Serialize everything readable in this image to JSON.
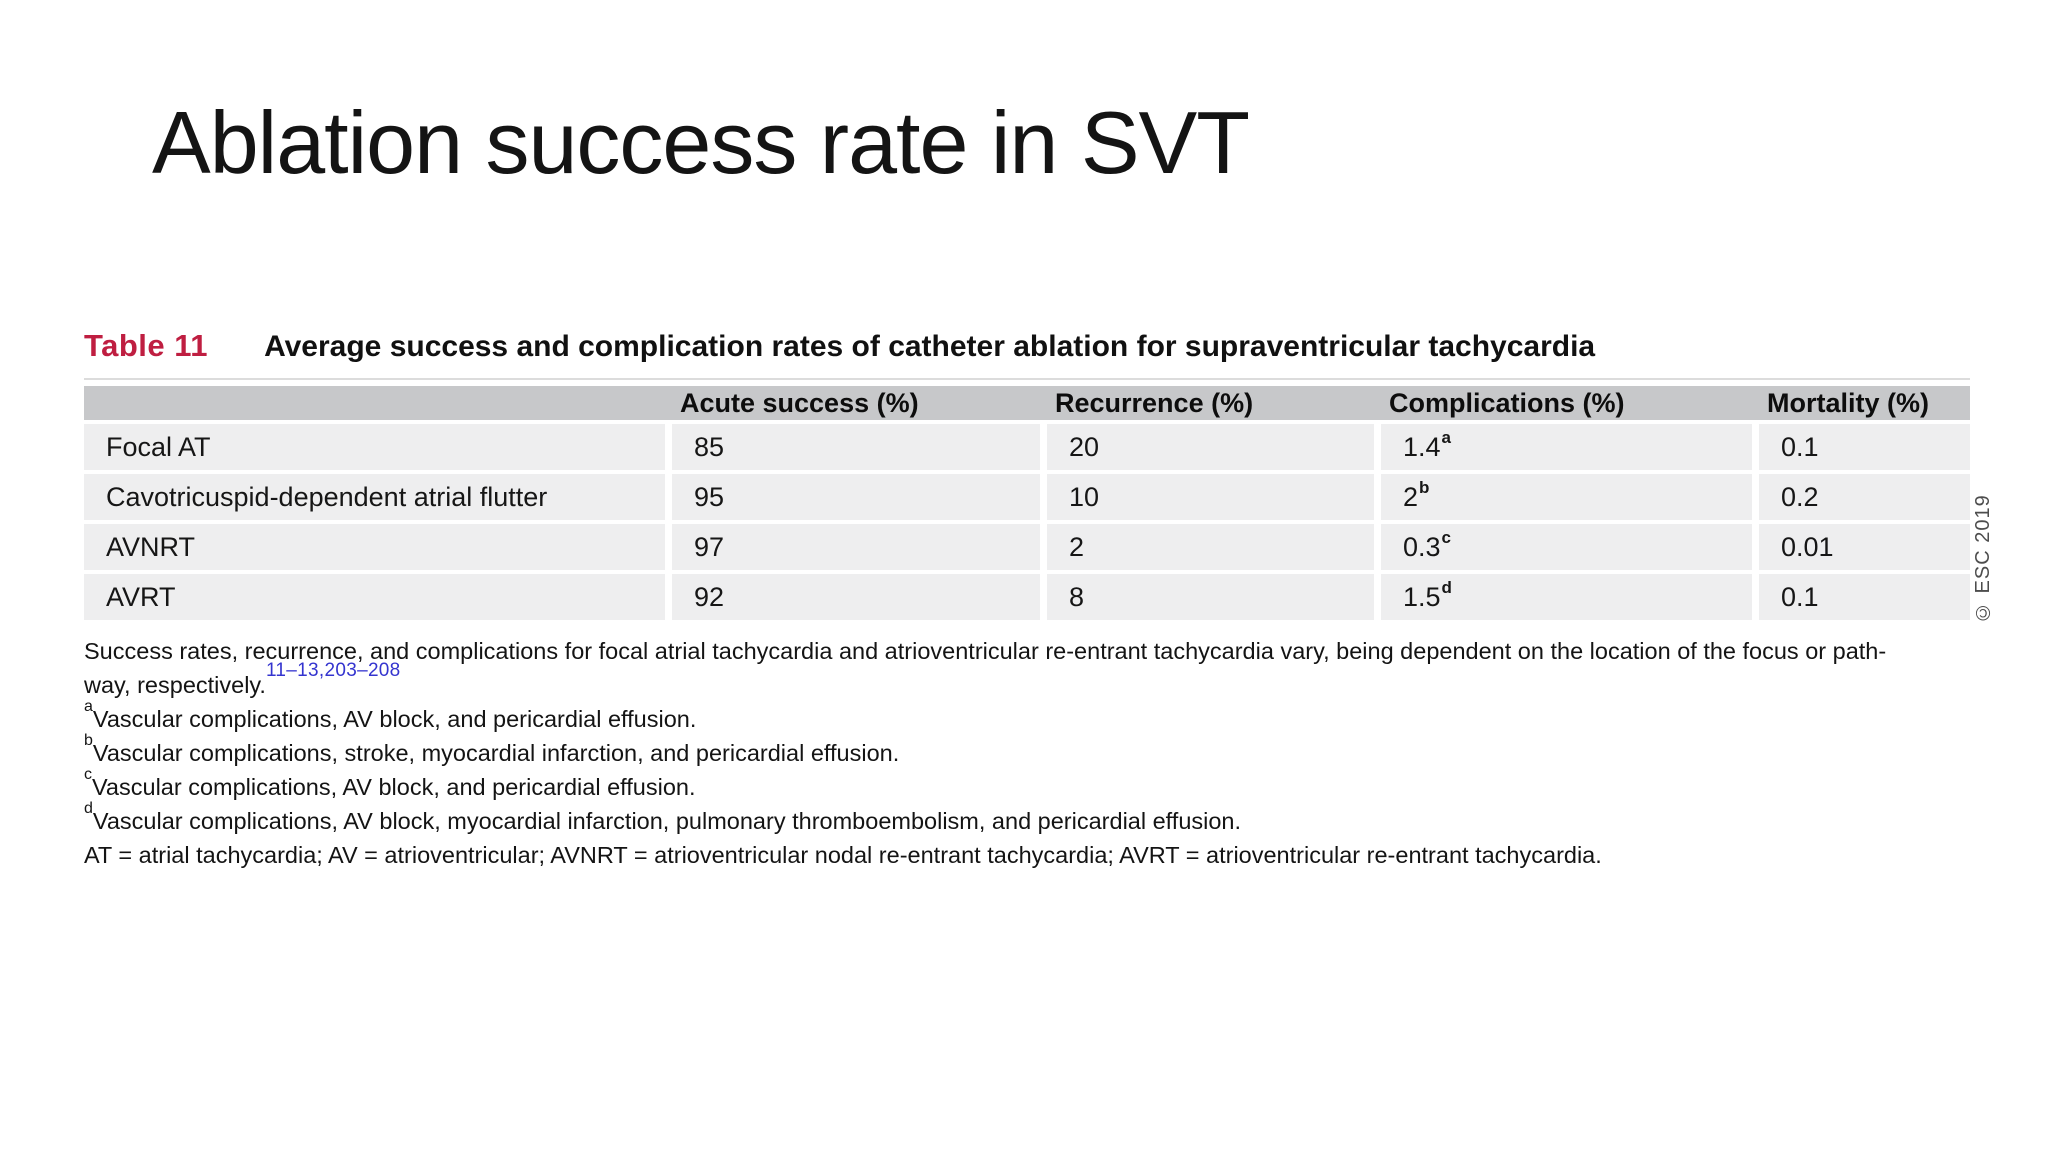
{
  "slide": {
    "title": "Ablation success rate in SVT"
  },
  "table": {
    "label": "Table 11",
    "caption": "Average success and complication rates of catheter ablation for supraventricular tachycardia",
    "columns": [
      "",
      "Acute success (%)",
      "Recurrence (%)",
      "Complications (%)",
      "Mortality (%)"
    ],
    "rows": [
      {
        "label": "Focal AT",
        "acute_success": "85",
        "recurrence": "20",
        "complications": "1.4",
        "complications_sup": "a",
        "mortality": "0.1"
      },
      {
        "label": "Cavotricuspid-dependent atrial flutter",
        "acute_success": "95",
        "recurrence": "10",
        "complications": "2",
        "complications_sup": "b",
        "mortality": "0.2"
      },
      {
        "label": "AVNRT",
        "acute_success": "97",
        "recurrence": "2",
        "complications": "0.3",
        "complications_sup": "c",
        "mortality": "0.01"
      },
      {
        "label": "AVRT",
        "acute_success": "92",
        "recurrence": "8",
        "complications": "1.5",
        "complications_sup": "d",
        "mortality": "0.1"
      }
    ]
  },
  "notes": {
    "para_line1": "Success rates, recurrence, and complications for focal atrial tachycardia and atrioventricular re-entrant tachycardia vary, being dependent on the location of the focus or path-",
    "para_line2": "way, respectively.",
    "para_refs": "11–13,203–208",
    "footnotes": [
      {
        "sup": "a",
        "text": "Vascular complications, AV block, and pericardial effusion."
      },
      {
        "sup": "b",
        "text": "Vascular complications, stroke, myocardial infarction, and pericardial effusion."
      },
      {
        "sup": "c",
        "text": "Vascular complications, AV block, and pericardial effusion."
      },
      {
        "sup": "d",
        "text": "Vascular complications, AV block, myocardial infarction, pulmonary thromboembolism, and pericardial effusion."
      }
    ],
    "abbreviations": "AT = atrial tachycardia; AV = atrioventricular; AVNRT = atrioventricular nodal re-entrant tachycardia; AVRT = atrioventricular re-entrant tachycardia."
  },
  "watermark": "© ESC 2019",
  "colors": {
    "table_label_red": "#bf1e41",
    "reference_blue": "#3434cf",
    "header_bg": "#c7c8ca",
    "row_bg": "#eeeeef"
  }
}
